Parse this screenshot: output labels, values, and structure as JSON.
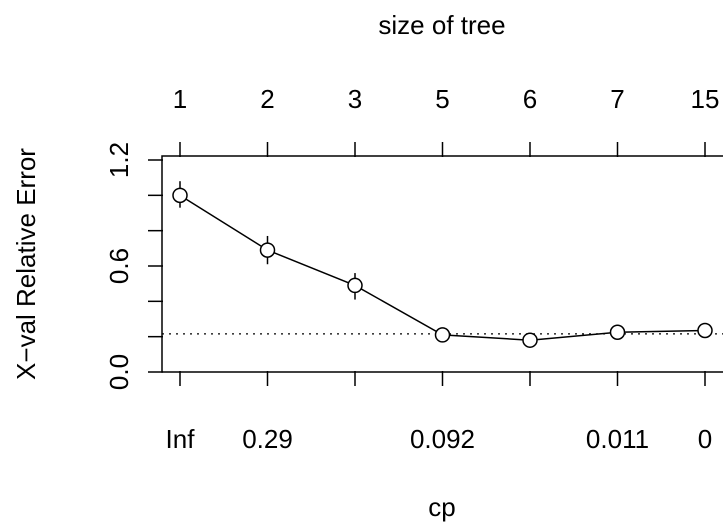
{
  "chart_data": {
    "type": "line",
    "top_axis_title": "size of tree",
    "xlabel": "cp",
    "ylabel": "X−val Relative Error",
    "top_tick_labels": [
      "1",
      "2",
      "3",
      "5",
      "6",
      "7",
      "15"
    ],
    "bottom_tick_labels": [
      "Inf",
      "0.29",
      "",
      "0.092",
      "",
      "0.011",
      "0"
    ],
    "y_tick_labels": [
      "0.0",
      "0.6",
      "1.2"
    ],
    "y_ticks": [
      0.0,
      0.2,
      0.4,
      0.6,
      0.8,
      1.0,
      1.2
    ],
    "ylim": [
      0.0,
      1.2
    ],
    "reference_line": 0.216,
    "series": [
      {
        "values": [
          1.0,
          0.69,
          0.49,
          0.21,
          0.18,
          0.225,
          0.235
        ],
        "err_low": [
          0.93,
          0.61,
          0.41,
          0.18,
          0.155,
          0.195,
          0.205
        ],
        "err_high": [
          1.08,
          0.77,
          0.56,
          0.24,
          0.205,
          0.255,
          0.265
        ]
      }
    ]
  }
}
